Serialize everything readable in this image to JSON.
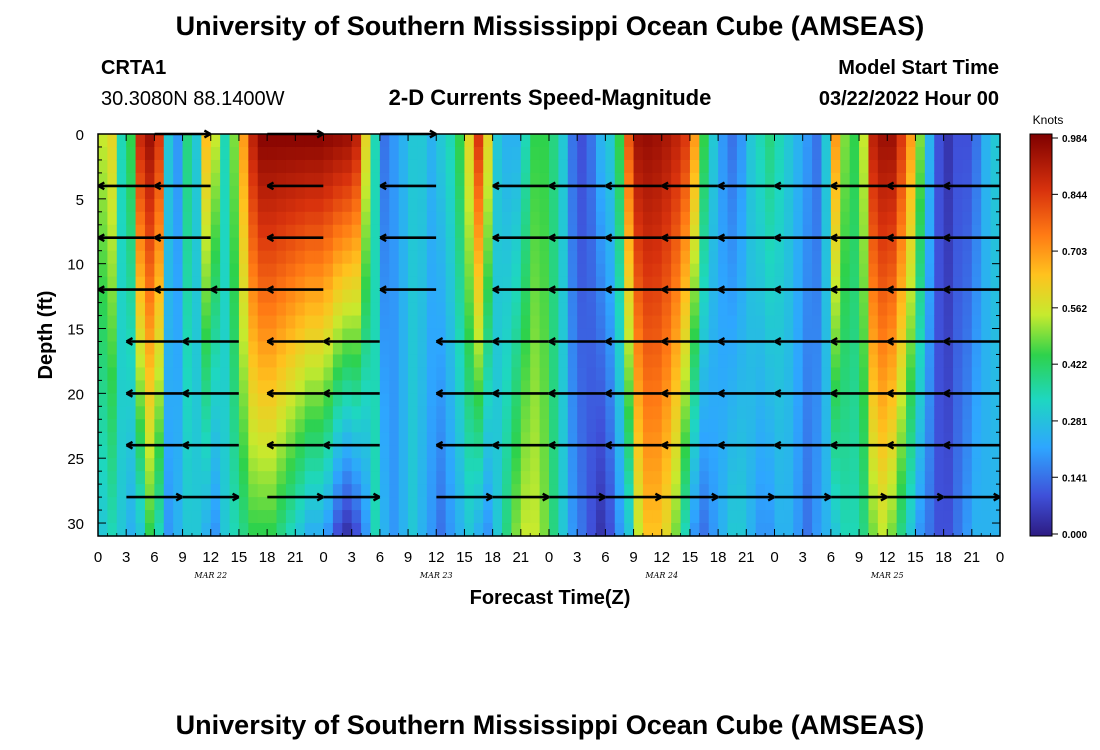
{
  "title": "University of Southern Mississippi Ocean Cube (AMSEAS)",
  "repeat_title": "University of Southern Mississippi Ocean Cube (AMSEAS)",
  "station": {
    "name": "CRTA1",
    "coords": "30.3080N  88.1400W"
  },
  "subtitle": "2-D Currents Speed-Magnitude",
  "model_start": {
    "label": "Model Start Time",
    "value": "03/22/2022 Hour 00"
  },
  "colors": {
    "low": "#2d1b82",
    "mid": "#1ec94a",
    "high": "#7f0000",
    "vector": "#000000"
  },
  "chart_data": {
    "type": "heatmap",
    "title": "2-D Currents Speed-Magnitude",
    "xlabel": "Forecast Time(Z)",
    "ylabel": "Depth (ft)",
    "units": "Knots",
    "hours_range": [
      0,
      96
    ],
    "depth_range": [
      0,
      31
    ],
    "x_tick_labels": [
      "0",
      "3",
      "6",
      "9",
      "12",
      "15",
      "18",
      "21",
      "0",
      "3",
      "6",
      "9",
      "12",
      "15",
      "18",
      "21",
      "0",
      "3",
      "6",
      "9",
      "12",
      "15",
      "18",
      "21",
      "0",
      "3",
      "6",
      "9",
      "12",
      "15",
      "18",
      "21",
      "0"
    ],
    "date_labels": [
      {
        "label": "MAR 22",
        "hour": 12
      },
      {
        "label": "MAR 23",
        "hour": 36
      },
      {
        "label": "MAR 24",
        "hour": 60
      },
      {
        "label": "MAR 25",
        "hour": 84
      }
    ],
    "y_ticks": [
      0,
      5,
      10,
      15,
      20,
      25,
      30
    ],
    "colorbar_ticks": [
      "0.984",
      "0.844",
      "0.703",
      "0.562",
      "0.422",
      "0.281",
      "0.141",
      "0.000"
    ],
    "colorbar_range": [
      0,
      0.984
    ],
    "speed_profile_surface": [
      [
        0,
        0.55
      ],
      [
        1,
        0.6
      ],
      [
        2,
        0.35
      ],
      [
        3,
        0.45
      ],
      [
        4,
        0.88
      ],
      [
        5,
        0.95
      ],
      [
        6,
        0.85
      ],
      [
        7,
        0.3
      ],
      [
        8,
        0.2
      ],
      [
        9,
        0.4
      ],
      [
        10,
        0.3
      ],
      [
        11,
        0.65
      ],
      [
        12,
        0.55
      ],
      [
        13,
        0.35
      ],
      [
        14,
        0.5
      ],
      [
        15,
        0.7
      ],
      [
        16,
        0.9
      ],
      [
        17,
        0.98
      ],
      [
        18,
        0.98
      ],
      [
        19,
        0.98
      ],
      [
        20,
        0.98
      ],
      [
        21,
        0.98
      ],
      [
        22,
        0.98
      ],
      [
        23,
        0.98
      ],
      [
        24,
        0.97
      ],
      [
        25,
        0.96
      ],
      [
        26,
        0.95
      ],
      [
        27,
        0.9
      ],
      [
        28,
        0.6
      ],
      [
        29,
        0.35
      ],
      [
        30,
        0.15
      ],
      [
        31,
        0.2
      ],
      [
        32,
        0.25
      ],
      [
        33,
        0.3
      ],
      [
        34,
        0.3
      ],
      [
        35,
        0.25
      ],
      [
        36,
        0.3
      ],
      [
        37,
        0.35
      ],
      [
        38,
        0.45
      ],
      [
        39,
        0.6
      ],
      [
        40,
        0.85
      ],
      [
        41,
        0.6
      ],
      [
        42,
        0.3
      ],
      [
        43,
        0.25
      ],
      [
        44,
        0.25
      ],
      [
        45,
        0.35
      ],
      [
        46,
        0.45
      ],
      [
        47,
        0.45
      ],
      [
        48,
        0.4
      ],
      [
        49,
        0.3
      ],
      [
        50,
        0.15
      ],
      [
        51,
        0.1
      ],
      [
        52,
        0.15
      ],
      [
        53,
        0.25
      ],
      [
        54,
        0.3
      ],
      [
        55,
        0.45
      ],
      [
        56,
        0.8
      ],
      [
        57,
        0.95
      ],
      [
        58,
        0.96
      ],
      [
        59,
        0.95
      ],
      [
        60,
        0.93
      ],
      [
        61,
        0.9
      ],
      [
        62,
        0.85
      ],
      [
        63,
        0.7
      ],
      [
        64,
        0.45
      ],
      [
        65,
        0.3
      ],
      [
        66,
        0.2
      ],
      [
        67,
        0.15
      ],
      [
        68,
        0.2
      ],
      [
        69,
        0.3
      ],
      [
        70,
        0.35
      ],
      [
        71,
        0.4
      ],
      [
        72,
        0.35
      ],
      [
        73,
        0.3
      ],
      [
        74,
        0.25
      ],
      [
        75,
        0.2
      ],
      [
        76,
        0.15
      ],
      [
        77,
        0.3
      ],
      [
        78,
        0.7
      ],
      [
        79,
        0.5
      ],
      [
        80,
        0.45
      ],
      [
        81,
        0.55
      ],
      [
        82,
        0.9
      ],
      [
        83,
        0.95
      ],
      [
        84,
        0.95
      ],
      [
        85,
        0.85
      ],
      [
        86,
        0.7
      ],
      [
        87,
        0.5
      ],
      [
        88,
        0.25
      ],
      [
        89,
        0.1
      ],
      [
        90,
        0.05
      ],
      [
        91,
        0.1
      ],
      [
        92,
        0.1
      ],
      [
        93,
        0.15
      ],
      [
        94,
        0.25
      ],
      [
        95,
        0.3
      ],
      [
        96,
        0.3
      ]
    ],
    "speed_profile_bottom": [
      [
        0,
        0.3
      ],
      [
        1,
        0.35
      ],
      [
        2,
        0.3
      ],
      [
        3,
        0.25
      ],
      [
        4,
        0.3
      ],
      [
        5,
        0.45
      ],
      [
        6,
        0.35
      ],
      [
        7,
        0.2
      ],
      [
        8,
        0.25
      ],
      [
        9,
        0.3
      ],
      [
        10,
        0.3
      ],
      [
        11,
        0.25
      ],
      [
        12,
        0.2
      ],
      [
        13,
        0.3
      ],
      [
        14,
        0.35
      ],
      [
        15,
        0.4
      ],
      [
        16,
        0.45
      ],
      [
        17,
        0.45
      ],
      [
        18,
        0.45
      ],
      [
        19,
        0.4
      ],
      [
        20,
        0.35
      ],
      [
        21,
        0.3
      ],
      [
        22,
        0.25
      ],
      [
        23,
        0.25
      ],
      [
        24,
        0.2
      ],
      [
        25,
        0.1
      ],
      [
        26,
        0.05
      ],
      [
        27,
        0.1
      ],
      [
        28,
        0.2
      ],
      [
        29,
        0.35
      ],
      [
        30,
        0.25
      ],
      [
        31,
        0.2
      ],
      [
        32,
        0.25
      ],
      [
        33,
        0.3
      ],
      [
        34,
        0.25
      ],
      [
        35,
        0.2
      ],
      [
        36,
        0.15
      ],
      [
        37,
        0.2
      ],
      [
        38,
        0.25
      ],
      [
        39,
        0.3
      ],
      [
        40,
        0.25
      ],
      [
        41,
        0.2
      ],
      [
        42,
        0.3
      ],
      [
        43,
        0.4
      ],
      [
        44,
        0.5
      ],
      [
        45,
        0.55
      ],
      [
        46,
        0.55
      ],
      [
        47,
        0.5
      ],
      [
        48,
        0.4
      ],
      [
        49,
        0.3
      ],
      [
        50,
        0.2
      ],
      [
        51,
        0.15
      ],
      [
        52,
        0.1
      ],
      [
        53,
        0.05
      ],
      [
        54,
        0.1
      ],
      [
        55,
        0.2
      ],
      [
        56,
        0.3
      ],
      [
        57,
        0.55
      ],
      [
        58,
        0.65
      ],
      [
        59,
        0.65
      ],
      [
        60,
        0.6
      ],
      [
        61,
        0.5
      ],
      [
        62,
        0.35
      ],
      [
        63,
        0.2
      ],
      [
        64,
        0.15
      ],
      [
        65,
        0.2
      ],
      [
        66,
        0.25
      ],
      [
        67,
        0.3
      ],
      [
        68,
        0.3
      ],
      [
        69,
        0.25
      ],
      [
        70,
        0.2
      ],
      [
        71,
        0.2
      ],
      [
        72,
        0.25
      ],
      [
        73,
        0.25
      ],
      [
        74,
        0.2
      ],
      [
        75,
        0.15
      ],
      [
        76,
        0.2
      ],
      [
        77,
        0.25
      ],
      [
        78,
        0.3
      ],
      [
        79,
        0.35
      ],
      [
        80,
        0.35
      ],
      [
        81,
        0.4
      ],
      [
        82,
        0.5
      ],
      [
        83,
        0.55
      ],
      [
        84,
        0.5
      ],
      [
        85,
        0.4
      ],
      [
        86,
        0.3
      ],
      [
        87,
        0.2
      ],
      [
        88,
        0.15
      ],
      [
        89,
        0.1
      ],
      [
        90,
        0.1
      ],
      [
        91,
        0.15
      ],
      [
        92,
        0.2
      ],
      [
        93,
        0.25
      ],
      [
        94,
        0.25
      ],
      [
        95,
        0.25
      ],
      [
        96,
        0.25
      ]
    ],
    "vector_depths": [
      4,
      8,
      12,
      16,
      20,
      24,
      28
    ],
    "vectors": [
      {
        "depth": 0,
        "hours": [
          6,
          18,
          30
        ],
        "angle": 0
      },
      {
        "depth": 4,
        "hours": [
          0,
          6,
          18,
          30,
          42,
          48,
          54,
          60,
          66,
          72,
          78,
          84,
          90
        ],
        "angle": 180
      },
      {
        "depth": 8,
        "hours": [
          0,
          6,
          18,
          30,
          42,
          48,
          54,
          60,
          66,
          72,
          78,
          84,
          90
        ],
        "angle": 180
      },
      {
        "depth": 12,
        "hours": [
          0,
          6,
          12,
          18,
          30,
          42,
          48,
          54,
          60,
          66,
          72,
          78,
          84,
          90
        ],
        "angle": 180
      },
      {
        "depth": 16,
        "hours": [
          3,
          9,
          18,
          24,
          36,
          42,
          48,
          54,
          60,
          66,
          72,
          78,
          84,
          90
        ],
        "angle": 180
      },
      {
        "depth": 20,
        "hours": [
          3,
          9,
          18,
          24,
          36,
          42,
          48,
          54,
          60,
          66,
          72,
          78,
          84,
          90
        ],
        "angle": 180
      },
      {
        "depth": 24,
        "hours": [
          3,
          9,
          18,
          24,
          36,
          42,
          48,
          54,
          60,
          66,
          72,
          78,
          84,
          90
        ],
        "angle": 180
      },
      {
        "depth": 28,
        "hours": [
          3,
          9,
          18,
          24,
          36,
          42,
          48,
          54,
          60,
          66,
          72,
          78,
          84,
          90
        ],
        "angle": 0
      }
    ]
  }
}
